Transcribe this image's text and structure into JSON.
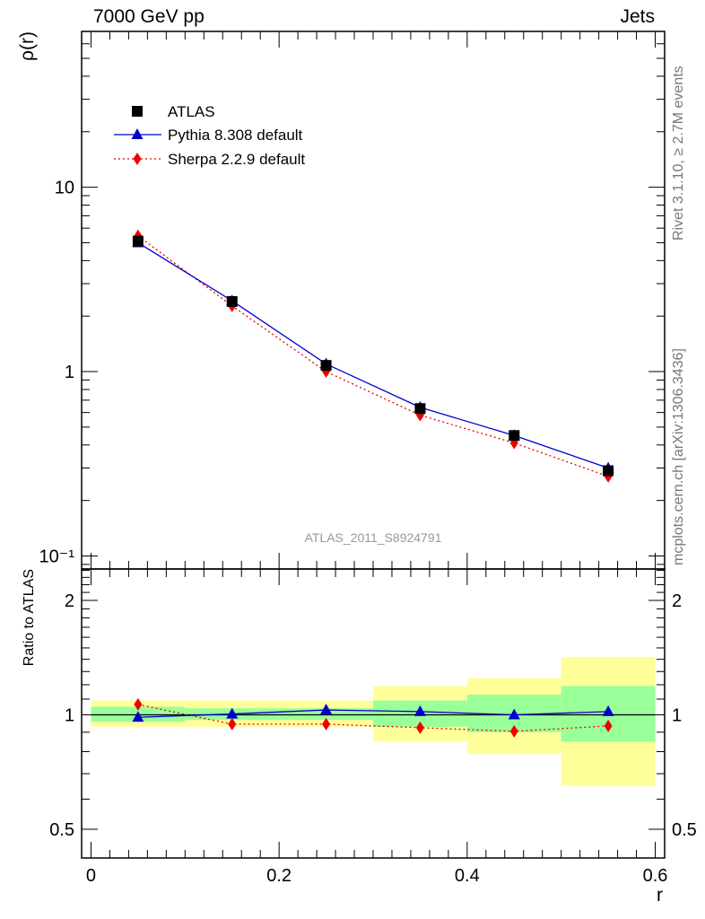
{
  "header": {
    "left": "7000 GeV pp",
    "right": "Jets"
  },
  "side_labels": {
    "rivet": "Rivet 3.1.10, ≥ 2.7M events",
    "mcplots": "mcplots.cern.ch [arXiv:1306.3436]"
  },
  "watermark": "ATLAS_2011_S8924791",
  "chart_data": [
    {
      "type": "scatter",
      "panel": "main",
      "ylabel": "ρ(r)",
      "xlabel": "",
      "yscale": "log",
      "xlim": [
        -0.01,
        0.61
      ],
      "ylim": [
        0.085,
        70
      ],
      "yticks": [
        {
          "value": 10,
          "label": "10"
        },
        {
          "value": 1,
          "label": "1"
        },
        {
          "value": 0.1,
          "label": "10⁻¹"
        }
      ],
      "legend_position": "top-left",
      "x": [
        0.05,
        0.15,
        0.25,
        0.35,
        0.45,
        0.55
      ],
      "series": [
        {
          "name": "ATLAS",
          "marker": "square",
          "color": "#000000",
          "values": [
            5.1,
            2.4,
            1.08,
            0.63,
            0.45,
            0.29
          ]
        },
        {
          "name": "Pythia 8.308 default",
          "marker": "triangle",
          "line": "solid",
          "color": "#0000cc",
          "values": [
            5.0,
            2.42,
            1.1,
            0.64,
            0.45,
            0.3
          ]
        },
        {
          "name": "Sherpa 2.2.9 default",
          "marker": "diamond",
          "line": "dotted",
          "color": "#ee0000",
          "values": [
            5.45,
            2.27,
            1.0,
            0.58,
            0.41,
            0.27
          ]
        }
      ]
    },
    {
      "type": "scatter",
      "panel": "ratio",
      "ylabel": "Ratio to ATLAS",
      "xlabel": "r",
      "yscale": "log",
      "xlim": [
        -0.01,
        0.61
      ],
      "ylim": [
        0.42,
        2.42
      ],
      "yticks": [
        {
          "value": 2,
          "label": "2"
        },
        {
          "value": 1,
          "label": "1"
        },
        {
          "value": 0.5,
          "label": "0.5"
        }
      ],
      "xticks": [
        {
          "value": 0,
          "label": "0"
        },
        {
          "value": 0.2,
          "label": "0.2"
        },
        {
          "value": 0.4,
          "label": "0.4"
        },
        {
          "value": 0.6,
          "label": "0.6"
        }
      ],
      "bins": [
        [
          0,
          0.1
        ],
        [
          0.1,
          0.2
        ],
        [
          0.2,
          0.3
        ],
        [
          0.3,
          0.4
        ],
        [
          0.4,
          0.5
        ],
        [
          0.5,
          0.6
        ]
      ],
      "band_inner": [
        [
          0.96,
          1.05
        ],
        [
          0.97,
          1.04
        ],
        [
          0.97,
          1.04
        ],
        [
          0.93,
          1.09
        ],
        [
          0.9,
          1.13
        ],
        [
          0.85,
          1.19
        ]
      ],
      "band_outer": [
        [
          0.93,
          1.09
        ],
        [
          0.93,
          1.09
        ],
        [
          0.93,
          1.09
        ],
        [
          0.85,
          1.19
        ],
        [
          0.79,
          1.25
        ],
        [
          0.65,
          1.42
        ]
      ],
      "band_colors": {
        "inner": "#99ff99",
        "outer": "#ffff99"
      },
      "x": [
        0.05,
        0.15,
        0.25,
        0.35,
        0.45,
        0.55
      ],
      "series": [
        {
          "name": "Pythia 8.308 default",
          "marker": "triangle",
          "line": "solid",
          "color": "#0000cc",
          "values": [
            0.985,
            1.005,
            1.03,
            1.02,
            1.0,
            1.02
          ]
        },
        {
          "name": "Sherpa 2.2.9 default",
          "marker": "diamond",
          "line": "dotted",
          "color": "#ee0000",
          "values": [
            1.065,
            0.945,
            0.945,
            0.925,
            0.905,
            0.935
          ]
        }
      ]
    }
  ]
}
